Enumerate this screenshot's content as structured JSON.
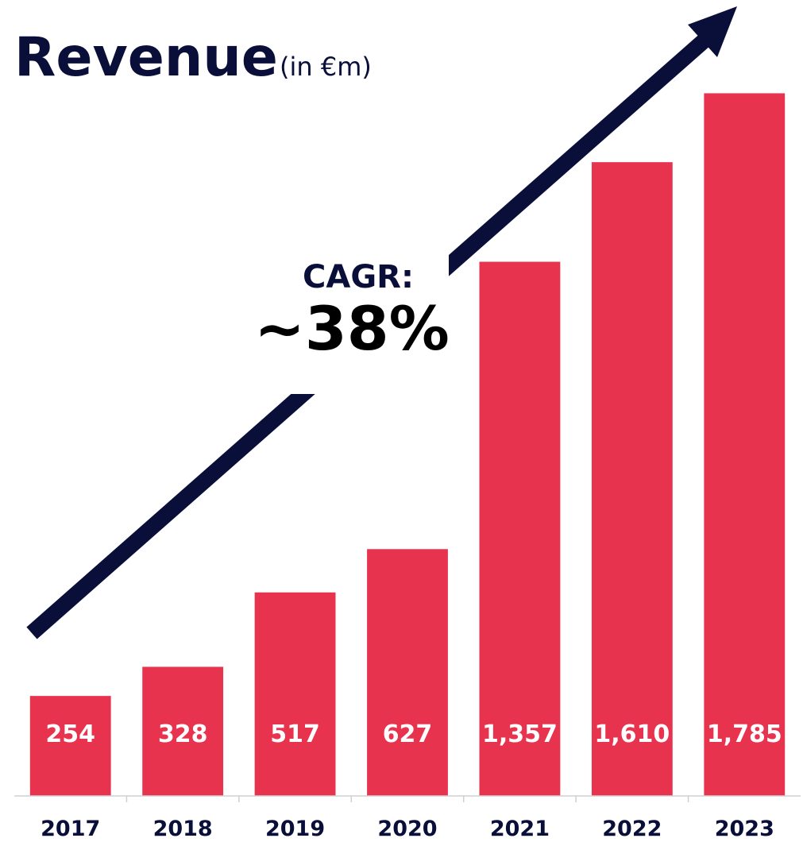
{
  "chart_data": {
    "type": "bar",
    "title": "Revenue",
    "subtitle": "(in €m)",
    "annotations": [
      "CAGR:",
      "~38%"
    ],
    "categories": [
      "2017",
      "2018",
      "2019",
      "2020",
      "2021",
      "2022",
      "2023"
    ],
    "values": [
      254,
      328,
      517,
      627,
      1357,
      1610,
      1785
    ],
    "value_labels": [
      "254",
      "328",
      "517",
      "627",
      "1,357",
      "1,610",
      "1,785"
    ],
    "color": "#e8334f",
    "ylim": [
      0,
      1800
    ]
  }
}
